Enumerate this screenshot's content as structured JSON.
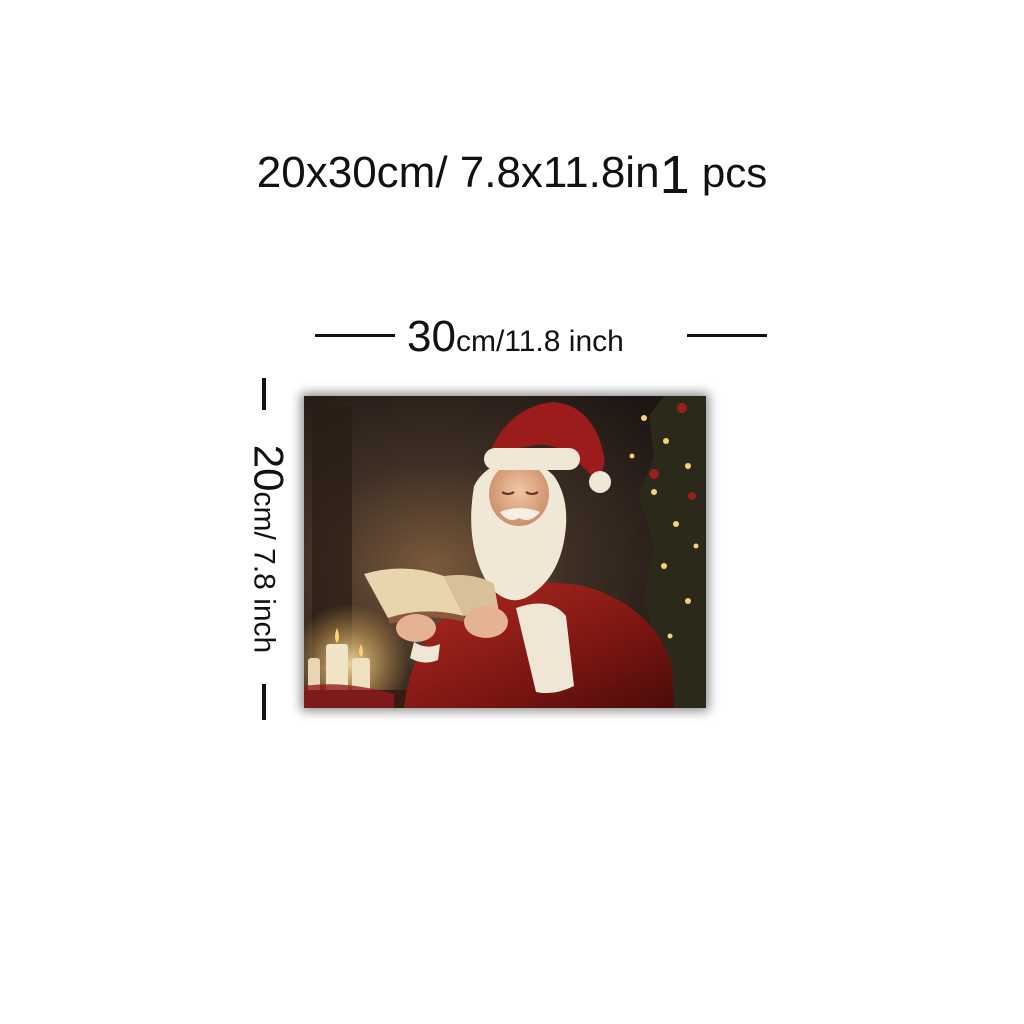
{
  "product": {
    "title_size": "20x30cm/ 7.8x11.8in",
    "quantity_number": "1",
    "quantity_unit": "pcs"
  },
  "dimensions": {
    "width_big": "30",
    "width_rest": "cm/11.8 inch",
    "height_big": "20",
    "height_rest": "cm/ 7.8 inch"
  },
  "artwork": {
    "subject_icon": "santa-reading-book-painting",
    "colors": {
      "background_dark": "#2a1f1a",
      "santa_red": "#8e1b1b",
      "fur_white": "#f1e7d6",
      "candle_glow": "#f7d58a"
    }
  }
}
